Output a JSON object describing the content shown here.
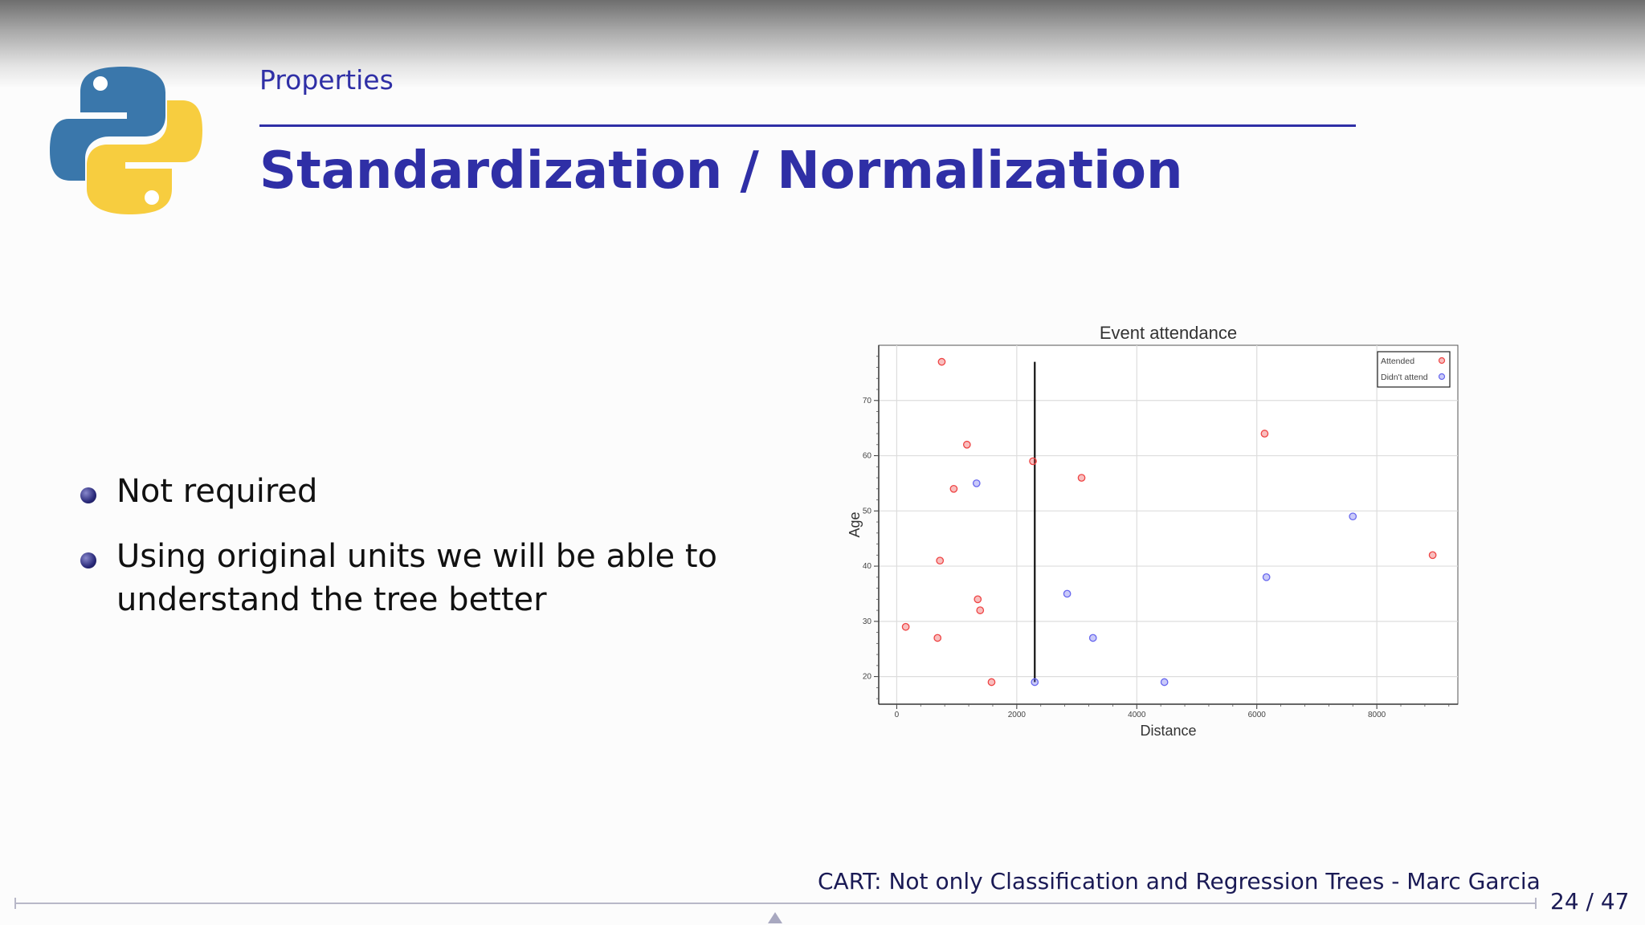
{
  "slide": {
    "section": "Properties",
    "title": "Standardization / Normalization",
    "bullets": [
      "Not required",
      "Using original units we will be able to understand the tree better"
    ],
    "footer": "CART: Not only Classification and Regression Trees - Marc Garcia",
    "page_number": "24 / 47"
  },
  "colors": {
    "title": "#2f2fa6",
    "attended": "#ee4444",
    "didnt_attend": "#6666ee"
  },
  "chart_data": {
    "type": "scatter",
    "title": "Event attendance",
    "xlabel": "Distance",
    "ylabel": "Age",
    "xlim": [
      -300,
      9350
    ],
    "ylim": [
      15,
      80
    ],
    "xticks": [
      0,
      2000,
      4000,
      6000,
      8000
    ],
    "yticks": [
      20,
      30,
      40,
      50,
      60,
      70
    ],
    "grid": true,
    "legend_position": "top-right",
    "split_line_x": 2300,
    "series": [
      {
        "name": "Attended",
        "color": "#ee4444",
        "points": [
          [
            750,
            77
          ],
          [
            1170,
            62
          ],
          [
            950,
            54
          ],
          [
            720,
            41
          ],
          [
            150,
            29
          ],
          [
            680,
            27
          ],
          [
            1350,
            34
          ],
          [
            1390,
            32
          ],
          [
            1580,
            19
          ],
          [
            2270,
            59
          ],
          [
            3080,
            56
          ],
          [
            6130,
            64
          ],
          [
            8930,
            42
          ]
        ]
      },
      {
        "name": "Didn't attend",
        "color": "#6666ee",
        "points": [
          [
            1330,
            55
          ],
          [
            2300,
            19
          ],
          [
            2840,
            35
          ],
          [
            3270,
            27
          ],
          [
            4460,
            19
          ],
          [
            6160,
            38
          ],
          [
            7600,
            49
          ]
        ]
      }
    ]
  }
}
